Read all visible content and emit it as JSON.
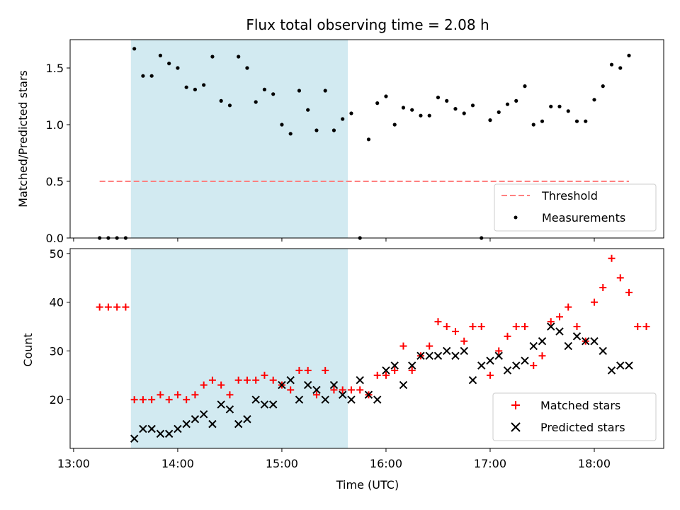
{
  "chart_data": [
    {
      "type": "scatter",
      "title": "Flux total observing time = 2.08 h",
      "ylabel": "Matched/Predicted stars",
      "xlabel": "",
      "ylim": [
        0,
        1.75
      ],
      "yticks": [
        "0.0",
        "0.5",
        "1.0",
        "1.5"
      ],
      "highlight_span": {
        "start": "13:33",
        "end": "15:38"
      },
      "grid": false,
      "legend_position": "lower-right",
      "series": [
        {
          "name": "Threshold",
          "kind": "line",
          "style": "dashed",
          "color": "#ff8080",
          "x": [
            "13:15",
            "18:20"
          ],
          "y": [
            0.5,
            0.5
          ]
        },
        {
          "name": "Measurements",
          "kind": "scatter",
          "marker": "dot",
          "color": "#000000",
          "x": [
            "13:15",
            "13:20",
            "13:25",
            "13:30",
            "13:35",
            "13:40",
            "13:45",
            "13:50",
            "13:55",
            "14:00",
            "14:05",
            "14:10",
            "14:15",
            "14:20",
            "14:25",
            "14:30",
            "14:35",
            "14:40",
            "14:45",
            "14:50",
            "14:55",
            "15:00",
            "15:05",
            "15:10",
            "15:15",
            "15:20",
            "15:25",
            "15:30",
            "15:35",
            "15:40",
            "15:45",
            "15:50",
            "15:55",
            "16:00",
            "16:05",
            "16:10",
            "16:15",
            "16:20",
            "16:25",
            "16:30",
            "16:35",
            "16:40",
            "16:45",
            "16:50",
            "16:55",
            "17:00",
            "17:05",
            "17:10",
            "17:15",
            "17:20",
            "17:25",
            "17:30",
            "17:35",
            "17:40",
            "17:45",
            "17:50",
            "17:55",
            "18:00",
            "18:05",
            "18:10",
            "18:15",
            "18:20"
          ],
          "y": [
            0.0,
            0.0,
            0.0,
            0.0,
            1.67,
            1.43,
            1.43,
            1.61,
            1.54,
            1.5,
            1.33,
            1.31,
            1.35,
            1.6,
            1.21,
            1.17,
            1.6,
            1.5,
            1.2,
            1.31,
            1.27,
            1.0,
            0.92,
            1.3,
            1.13,
            0.95,
            1.3,
            0.95,
            1.05,
            1.1,
            0.0,
            0.87,
            1.19,
            1.25,
            1.0,
            1.15,
            1.13,
            1.08,
            1.08,
            1.24,
            1.21,
            1.14,
            1.1,
            1.17,
            0.0,
            1.04,
            1.11,
            1.18,
            1.21,
            1.34,
            1.0,
            1.03,
            1.16,
            1.16,
            1.12,
            1.03,
            1.03,
            1.22,
            1.34,
            1.53,
            1.5,
            1.61
          ]
        }
      ]
    },
    {
      "type": "scatter",
      "title": "",
      "ylabel": "Count",
      "xlabel": "Time (UTC)",
      "ylim": [
        10,
        51
      ],
      "yticks": [
        "20",
        "30",
        "40",
        "50"
      ],
      "xticks": [
        "13:00",
        "14:00",
        "15:00",
        "16:00",
        "17:00",
        "18:00"
      ],
      "highlight_span": {
        "start": "13:33",
        "end": "15:38"
      },
      "grid": false,
      "legend_position": "lower-right",
      "series": [
        {
          "name": "Matched stars",
          "kind": "scatter",
          "marker": "plus",
          "color": "#ff0000",
          "x": [
            "13:15",
            "13:20",
            "13:25",
            "13:30",
            "13:35",
            "13:40",
            "13:45",
            "13:50",
            "13:55",
            "14:00",
            "14:05",
            "14:10",
            "14:15",
            "14:20",
            "14:25",
            "14:30",
            "14:35",
            "14:40",
            "14:45",
            "14:50",
            "14:55",
            "15:00",
            "15:05",
            "15:10",
            "15:15",
            "15:20",
            "15:25",
            "15:30",
            "15:35",
            "15:40",
            "15:45",
            "15:50",
            "15:55",
            "16:00",
            "16:05",
            "16:10",
            "16:15",
            "16:20",
            "16:25",
            "16:30",
            "16:35",
            "16:40",
            "16:45",
            "16:50",
            "16:55",
            "17:00",
            "17:05",
            "17:10",
            "17:15",
            "17:20",
            "17:25",
            "17:30",
            "17:35",
            "17:40",
            "17:45",
            "17:50",
            "17:55",
            "18:00",
            "18:05",
            "18:10",
            "18:15",
            "18:20",
            "18:25",
            "18:30"
          ],
          "y": [
            39,
            39,
            39,
            39,
            20,
            20,
            20,
            21,
            20,
            21,
            20,
            21,
            23,
            24,
            23,
            21,
            24,
            24,
            24,
            25,
            24,
            23,
            22,
            26,
            26,
            21,
            26,
            22,
            22,
            22,
            22,
            21,
            25,
            25,
            26,
            31,
            26,
            29,
            31,
            36,
            35,
            34,
            32,
            35,
            35,
            25,
            30,
            33,
            35,
            35,
            27,
            29,
            36,
            37,
            39,
            35,
            32,
            40,
            43,
            49,
            45,
            42,
            35,
            35
          ]
        },
        {
          "name": "Predicted stars",
          "kind": "scatter",
          "marker": "x",
          "color": "#000000",
          "x": [
            "13:35",
            "13:40",
            "13:45",
            "13:50",
            "13:55",
            "14:00",
            "14:05",
            "14:10",
            "14:15",
            "14:20",
            "14:25",
            "14:30",
            "14:35",
            "14:40",
            "14:45",
            "14:50",
            "14:55",
            "15:00",
            "15:05",
            "15:10",
            "15:15",
            "15:20",
            "15:25",
            "15:30",
            "15:35",
            "15:40",
            "15:45",
            "15:50",
            "15:55",
            "16:00",
            "16:05",
            "16:10",
            "16:15",
            "16:20",
            "16:25",
            "16:30",
            "16:35",
            "16:40",
            "16:45",
            "16:50",
            "16:55",
            "17:00",
            "17:05",
            "17:10",
            "17:15",
            "17:20",
            "17:25",
            "17:30",
            "17:35",
            "17:40",
            "17:45",
            "17:50",
            "17:55",
            "18:00",
            "18:05",
            "18:10",
            "18:15",
            "18:20"
          ],
          "y": [
            12,
            14,
            14,
            13,
            13,
            14,
            15,
            16,
            17,
            15,
            19,
            18,
            15,
            16,
            20,
            19,
            19,
            23,
            24,
            20,
            23,
            22,
            20,
            23,
            21,
            20,
            24,
            21,
            20,
            26,
            27,
            23,
            27,
            29,
            29,
            29,
            30,
            29,
            30,
            24,
            27,
            28,
            29,
            26,
            27,
            28,
            31,
            32,
            35,
            34,
            31,
            33,
            32,
            32,
            30,
            26,
            27,
            27
          ]
        }
      ]
    }
  ],
  "colors": {
    "span": "#add8e6",
    "threshold": "#ff8080",
    "matched": "#ff0000",
    "predicted": "#000000"
  }
}
